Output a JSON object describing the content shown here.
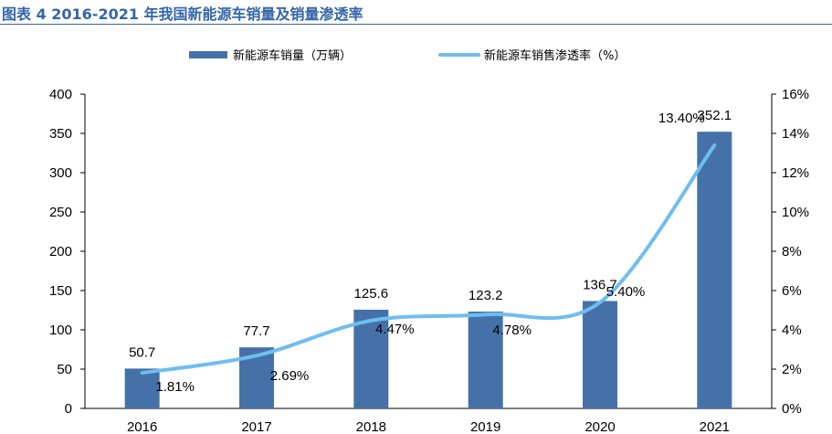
{
  "figure_title": "图表 4 2016-2021 年我国新能源车销量及销量渗透率",
  "colors": {
    "bar": "#4472a8",
    "line": "#6fbdf0",
    "axis": "#000000",
    "title": "#3565a8"
  },
  "chart_data": {
    "type": "bar",
    "categories": [
      "2016",
      "2017",
      "2018",
      "2019",
      "2020",
      "2021"
    ],
    "series": [
      {
        "name": "新能源车销量（万辆）",
        "type": "bar",
        "axis": "left",
        "values": [
          50.7,
          77.7,
          125.6,
          123.2,
          136.7,
          352.1
        ],
        "labels": [
          "50.7",
          "77.7",
          "125.6",
          "123.2",
          "136.7",
          "352.1"
        ]
      },
      {
        "name": "新能源车销售渗透率（%）",
        "type": "line",
        "axis": "right",
        "smooth": true,
        "values": [
          1.81,
          2.69,
          4.47,
          4.78,
          5.4,
          13.4
        ],
        "labels": [
          "1.81%",
          "2.69%",
          "4.47%",
          "4.78%",
          "5.40%",
          "13.40%"
        ]
      }
    ],
    "y_left": {
      "lim": [
        0,
        400
      ],
      "ticks": [
        "0",
        "50",
        "100",
        "150",
        "200",
        "250",
        "300",
        "350",
        "400"
      ]
    },
    "y_right": {
      "lim": [
        0,
        16
      ],
      "ticks": [
        "0%",
        "2%",
        "4%",
        "6%",
        "8%",
        "10%",
        "12%",
        "14%",
        "16%"
      ]
    },
    "legend_position": "top",
    "grid": false
  }
}
